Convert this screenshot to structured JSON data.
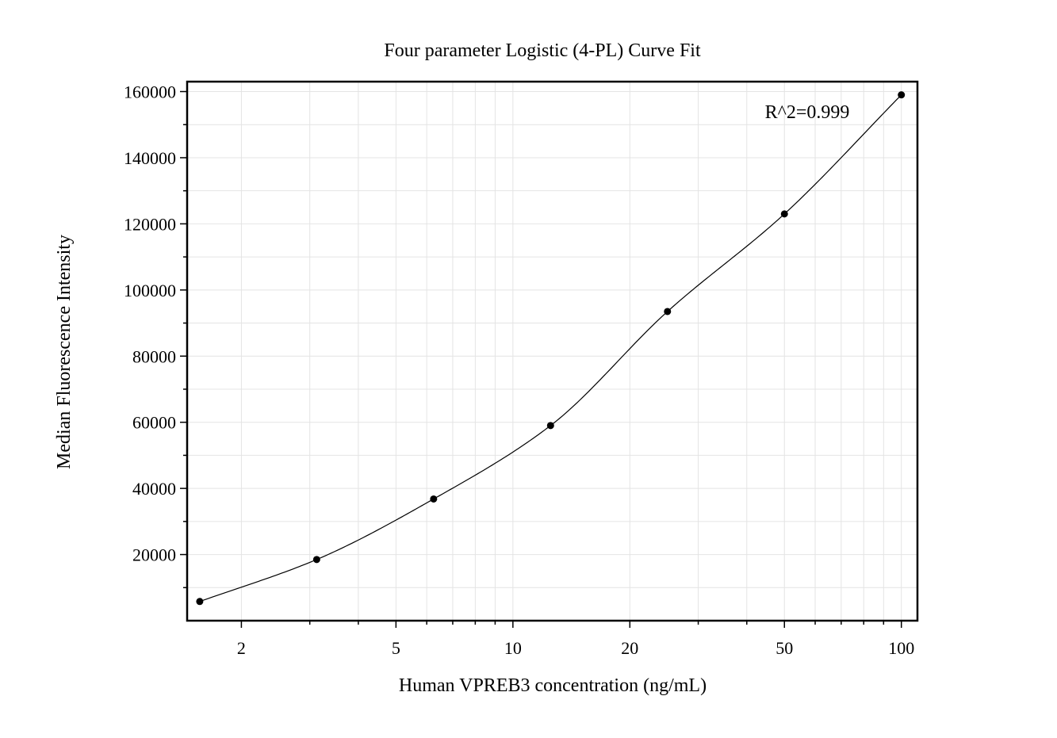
{
  "chart_data": {
    "type": "scatter",
    "title": "Four parameter Logistic (4-PL) Curve Fit",
    "xlabel": "Human VPREB3 concentration (ng/mL)",
    "ylabel": "Median Fluorescence Intensity",
    "x_scale": "log",
    "xlim": [
      1.45,
      110
    ],
    "ylim": [
      0,
      163000
    ],
    "x_ticks": [
      2,
      5,
      10,
      20,
      50,
      100
    ],
    "x_tick_labels": [
      "2",
      "5",
      "10",
      "20",
      "50",
      "100"
    ],
    "y_ticks": [
      20000,
      40000,
      60000,
      80000,
      100000,
      120000,
      140000,
      160000
    ],
    "y_tick_labels": [
      "20000",
      "40000",
      "60000",
      "80000",
      "100000",
      "120000",
      "140000",
      "160000"
    ],
    "grid": true,
    "annotation": "R^2=0.999",
    "series": [
      {
        "kind": "points",
        "x": [
          1.5625,
          3.125,
          6.25,
          12.5,
          25,
          50,
          100
        ],
        "y": [
          5800,
          18500,
          36800,
          59000,
          93500,
          123000,
          159000
        ],
        "color": "#000000"
      },
      {
        "kind": "fit-curve",
        "model": "4PL",
        "color": "#000000"
      }
    ]
  }
}
